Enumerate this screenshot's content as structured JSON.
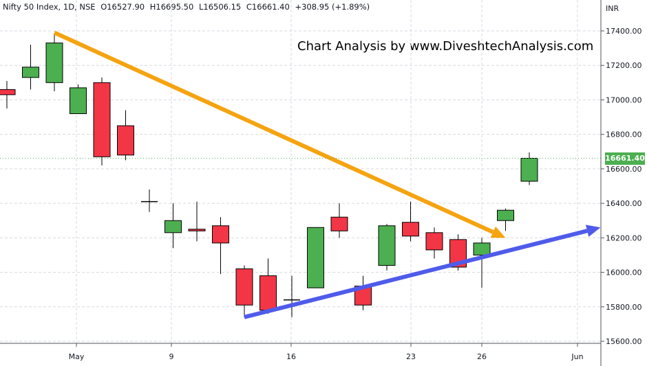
{
  "header": {
    "symbol": "Nifty 50 Index, 1D, NSE",
    "open": "O16527.90",
    "high": "H16695.50",
    "low": "L16506.15",
    "close": "C16661.40",
    "change": "+308.95 (+1.89%)"
  },
  "watermark": "Chart Analysis by www.DiveshtechAnalysis.com",
  "currency": "INR",
  "last_price_label": "16661.40",
  "colors": {
    "up": "#4caf50",
    "down": "#f23645",
    "grid": "#d6d9e0",
    "downtrend_arrow": "#f5a30f",
    "uptrend_arrow": "#4f5bea"
  },
  "chart_data": {
    "type": "candlestick",
    "x_labels": [
      "May",
      "9",
      "16",
      "23",
      "26",
      "Jun"
    ],
    "y_ticks": [
      15600,
      15800,
      16000,
      16200,
      16400,
      16600,
      16800,
      17000,
      17200,
      17400
    ],
    "y_tick_labels": [
      "15600.00",
      "15800.00",
      "16000.00",
      "16200.00",
      "16400.00",
      "16600.00",
      "16800.00",
      "17000.00",
      "17200.00",
      "17400.00"
    ],
    "ylim": [
      15540,
      17570
    ],
    "candles": [
      {
        "open": 17060,
        "high": 17110,
        "low": 16950,
        "close": 17030
      },
      {
        "open": 17130,
        "high": 17320,
        "low": 17060,
        "close": 17190
      },
      {
        "open": 17100,
        "high": 17380,
        "low": 17050,
        "close": 17330
      },
      {
        "open": 16920,
        "high": 17090,
        "low": 16920,
        "close": 17070
      },
      {
        "open": 17100,
        "high": 17130,
        "low": 16620,
        "close": 16670
      },
      {
        "open": 16850,
        "high": 16940,
        "low": 16650,
        "close": 16680
      },
      {
        "open": 16410,
        "high": 16480,
        "low": 16350,
        "close": 16410
      },
      {
        "open": 16230,
        "high": 16400,
        "low": 16140,
        "close": 16300
      },
      {
        "open": 16250,
        "high": 16410,
        "low": 16180,
        "close": 16240
      },
      {
        "open": 16270,
        "high": 16320,
        "low": 15990,
        "close": 16170
      },
      {
        "open": 16020,
        "high": 16040,
        "low": 15740,
        "close": 15810
      },
      {
        "open": 15980,
        "high": 16080,
        "low": 15760,
        "close": 15780
      },
      {
        "open": 15840,
        "high": 15980,
        "low": 15740,
        "close": 15840
      },
      {
        "open": 15910,
        "high": 16260,
        "low": 15910,
        "close": 16260
      },
      {
        "open": 16320,
        "high": 16400,
        "low": 16200,
        "close": 16240
      },
      {
        "open": 15920,
        "high": 15980,
        "low": 15780,
        "close": 15810
      },
      {
        "open": 16040,
        "high": 16280,
        "low": 16010,
        "close": 16270
      },
      {
        "open": 16290,
        "high": 16410,
        "low": 16180,
        "close": 16210
      },
      {
        "open": 16230,
        "high": 16260,
        "low": 16080,
        "close": 16130
      },
      {
        "open": 16190,
        "high": 16220,
        "low": 16010,
        "close": 16030
      },
      {
        "open": 16100,
        "high": 16200,
        "low": 15910,
        "close": 16170
      },
      {
        "open": 16300,
        "high": 16370,
        "low": 16240,
        "close": 16360
      },
      {
        "open": 16527.9,
        "high": 16695.5,
        "low": 16506.15,
        "close": 16661.4
      }
    ],
    "annotations": [
      {
        "type": "arrow",
        "name": "downtrend",
        "from": {
          "index": 2,
          "price": 17390
        },
        "to": {
          "index": 21,
          "price": 16200
        }
      },
      {
        "type": "arrow",
        "name": "uptrend",
        "from": {
          "index": 10,
          "price": 15740
        },
        "to": {
          "index": 25,
          "price": 16260
        }
      }
    ]
  }
}
